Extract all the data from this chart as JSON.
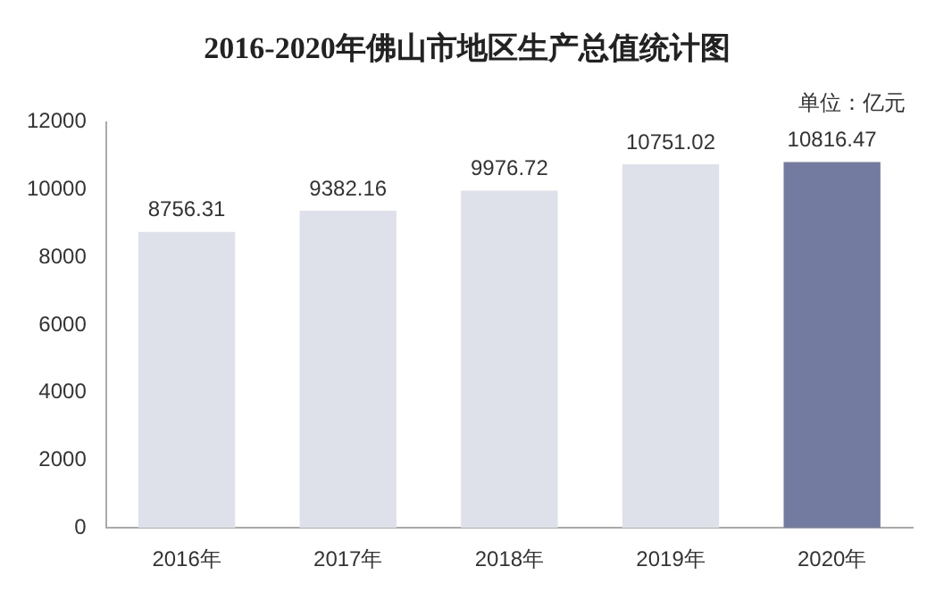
{
  "chart_data": {
    "type": "bar",
    "title": "2016-2020年佛山市地区生产总值统计图",
    "categories": [
      "2016年",
      "2017年",
      "2018年",
      "2019年",
      "2020年"
    ],
    "values": [
      8756.31,
      9382.16,
      9976.72,
      10751.02,
      10816.47
    ],
    "colors": [
      "#dfe1ea",
      "#dfe1ea",
      "#dfe1ea",
      "#dfe1ea",
      "#737ca0"
    ],
    "ylim": [
      0,
      12000
    ],
    "yticks": [
      0,
      2000,
      4000,
      6000,
      8000,
      10000,
      12000
    ],
    "data_labels": true,
    "grid": false,
    "legend": false,
    "annotations": [
      "单位：亿元"
    ]
  }
}
